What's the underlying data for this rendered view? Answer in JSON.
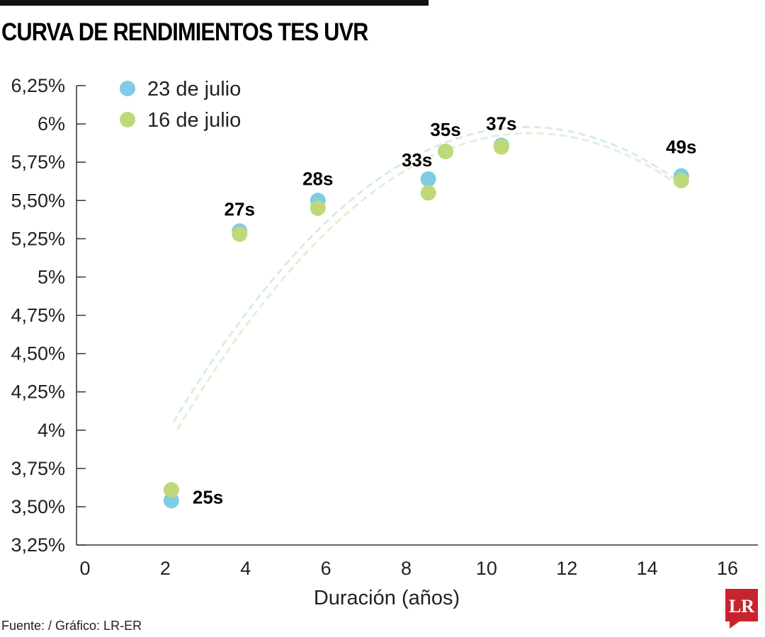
{
  "title": "CURVA DE RENDIMIENTOS TES UVR",
  "source": "Fuente: / Gráfico: LR-ER",
  "logo": "LR",
  "colors": {
    "series1": "#7ecde2",
    "series2": "#bfd97a",
    "trend": "#dbeedd",
    "logo": "#c8232c"
  },
  "chart_data": {
    "type": "scatter",
    "title": "CURVA DE RENDIMIENTOS TES UVR",
    "xlabel": "Duración (años)",
    "ylabel": "",
    "xlim": [
      0,
      16
    ],
    "ylim": [
      3.25,
      6.25
    ],
    "xticks": [
      "0",
      "2",
      "4",
      "6",
      "8",
      "10",
      "12",
      "14",
      "16"
    ],
    "yticks": [
      "3,25%",
      "3,50%",
      "3,75%",
      "4%",
      "4,25%",
      "4,50%",
      "4,75%",
      "5%",
      "5,25%",
      "5,50%",
      "5,75%",
      "6%",
      "6,25%"
    ],
    "legend_position": "top-left",
    "grid": false,
    "point_labels": [
      "25s",
      "27s",
      "28s",
      "33s",
      "35s",
      "37s",
      "49s"
    ],
    "x": [
      2.15,
      3.85,
      5.8,
      8.55,
      8.98,
      10.37,
      14.85
    ],
    "series": [
      {
        "name": "23 de julio",
        "values": [
          3.54,
          5.3,
          5.5,
          5.64,
          5.82,
          5.86,
          5.66
        ]
      },
      {
        "name": "16 de julio",
        "values": [
          3.61,
          5.28,
          5.45,
          5.55,
          5.82,
          5.85,
          5.63
        ]
      }
    ],
    "trendlines": "dashed polynomial fit per series"
  }
}
